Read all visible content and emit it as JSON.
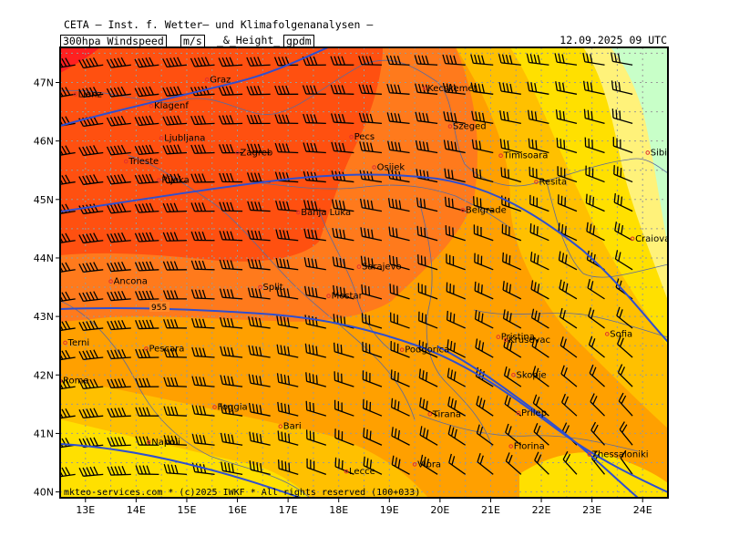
{
  "header": {
    "institute": "CETA — Inst. f. Wetter— und Klimafolgenanalysen —",
    "param1": "300hpa_Windspeed",
    "unit1": "m/s",
    "amp": "_&_Height_",
    "unit2": "gpdm",
    "datetime": "12.09.2025 09 UTC"
  },
  "footer": "mkteo-services.com * (c)2025 IWKF * All rights reserved (100+033)",
  "contour_label": "955",
  "map": {
    "lon_range": [
      12.5,
      24.5
    ],
    "lat_range": [
      39.9,
      47.6
    ],
    "lon_ticks": [
      "13E",
      "14E",
      "15E",
      "16E",
      "17E",
      "18E",
      "19E",
      "20E",
      "21E",
      "22E",
      "23E",
      "24E"
    ],
    "lat_ticks": [
      "47N",
      "46N",
      "45N",
      "44N",
      "43N",
      "42N",
      "41N",
      "40N"
    ],
    "colors": {
      "fill_1": "#ff2020",
      "fill_2": "#ff5010",
      "fill_3": "#ff7a1c",
      "fill_4": "#ffa000",
      "fill_5": "#ffc000",
      "fill_6": "#ffe000",
      "fill_7": "#fff27a",
      "fill_8": "#c8ffc8",
      "contour": "#2f4fd0",
      "border": "#5a6aa0",
      "city_marker": "#e03030"
    },
    "cities": [
      {
        "name": "Lienz",
        "lon": 12.8,
        "lat": 46.8
      },
      {
        "name": "Graz",
        "lon": 15.4,
        "lat": 47.05
      },
      {
        "name": "Klagenf",
        "lon": 14.3,
        "lat": 46.6
      },
      {
        "name": "Ljubljana",
        "lon": 14.5,
        "lat": 46.05
      },
      {
        "name": "Trieste",
        "lon": 13.8,
        "lat": 45.65
      },
      {
        "name": "Rijeka",
        "lon": 14.45,
        "lat": 45.33
      },
      {
        "name": "Zagreb",
        "lon": 16.0,
        "lat": 45.8
      },
      {
        "name": "Pecs",
        "lon": 18.25,
        "lat": 46.07
      },
      {
        "name": "Kecskemét",
        "lon": 19.7,
        "lat": 46.9
      },
      {
        "name": "Szeged",
        "lon": 20.2,
        "lat": 46.25
      },
      {
        "name": "Timisoara",
        "lon": 21.2,
        "lat": 45.75
      },
      {
        "name": "Osijek",
        "lon": 18.7,
        "lat": 45.55
      },
      {
        "name": "Resita",
        "lon": 21.9,
        "lat": 45.3
      },
      {
        "name": "Sibiu",
        "lon": 24.1,
        "lat": 45.8
      },
      {
        "name": "Banja Luka",
        "lon": 17.2,
        "lat": 44.78
      },
      {
        "name": "Belgrade",
        "lon": 20.45,
        "lat": 44.82
      },
      {
        "name": "Craiova",
        "lon": 23.8,
        "lat": 44.33
      },
      {
        "name": "Sarajevo",
        "lon": 18.4,
        "lat": 43.85
      },
      {
        "name": "Ancona",
        "lon": 13.5,
        "lat": 43.6
      },
      {
        "name": "Split",
        "lon": 16.45,
        "lat": 43.5
      },
      {
        "name": "Mostar",
        "lon": 17.8,
        "lat": 43.35
      },
      {
        "name": "Krusevac",
        "lon": 21.3,
        "lat": 42.6
      },
      {
        "name": "Pristina",
        "lon": 21.15,
        "lat": 42.65
      },
      {
        "name": "Sofia",
        "lon": 23.3,
        "lat": 42.7
      },
      {
        "name": "Terni",
        "lon": 12.6,
        "lat": 42.55
      },
      {
        "name": "Pescara",
        "lon": 14.2,
        "lat": 42.45
      },
      {
        "name": "Podgorica",
        "lon": 19.25,
        "lat": 42.43
      },
      {
        "name": "Skopje",
        "lon": 21.45,
        "lat": 42.0
      },
      {
        "name": "Rome",
        "lon": 12.5,
        "lat": 41.9
      },
      {
        "name": "Foggia",
        "lon": 15.55,
        "lat": 41.45
      },
      {
        "name": "Tirana",
        "lon": 19.8,
        "lat": 41.33
      },
      {
        "name": "Prilep",
        "lon": 21.55,
        "lat": 41.35
      },
      {
        "name": "Bari",
        "lon": 16.85,
        "lat": 41.12
      },
      {
        "name": "Napoli",
        "lon": 14.25,
        "lat": 40.85
      },
      {
        "name": "Florina",
        "lon": 21.4,
        "lat": 40.78
      },
      {
        "name": "Thessaloniki",
        "lon": 22.95,
        "lat": 40.64
      },
      {
        "name": "Lecce",
        "lon": 18.15,
        "lat": 40.35
      },
      {
        "name": "Vlora",
        "lon": 19.5,
        "lat": 40.47
      }
    ]
  }
}
